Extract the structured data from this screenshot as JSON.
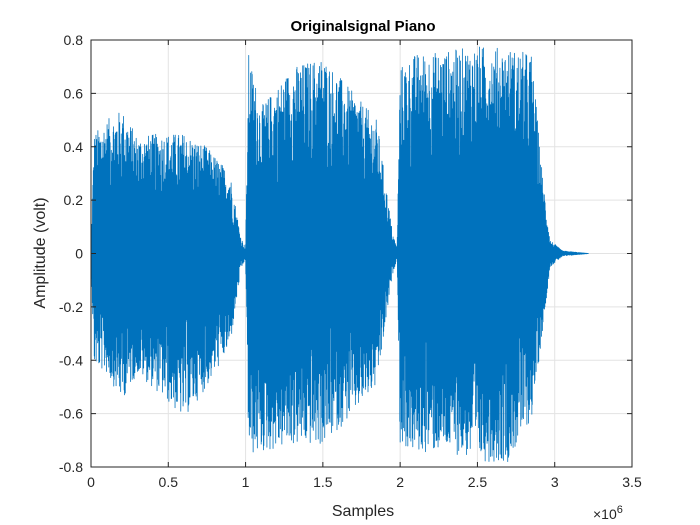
{
  "chart_data": {
    "type": "line",
    "title": "Originalsignal Piano",
    "xlabel": "Samples",
    "ylabel": "Amplitude (volt)",
    "x_exponent_base": "×10",
    "x_exponent_power": "6",
    "xlim": [
      0,
      3.5
    ],
    "ylim": [
      -0.8,
      0.8
    ],
    "x_scale_multiplier": 1000000,
    "x_ticks": [
      0,
      0.5,
      1,
      1.5,
      2,
      2.5,
      3,
      3.5
    ],
    "x_tick_labels": [
      "0",
      "0.5",
      "1",
      "1.5",
      "2",
      "2.5",
      "3",
      "3.5"
    ],
    "y_ticks": [
      -0.8,
      -0.6,
      -0.4,
      -0.2,
      0,
      0.2,
      0.4,
      0.6,
      0.8
    ],
    "y_tick_labels": [
      "-0.8",
      "-0.6",
      "-0.4",
      "-0.2",
      "0",
      "0.2",
      "0.4",
      "0.6",
      "0.8"
    ],
    "grid": true,
    "line_color": "#0072BD",
    "series": [
      {
        "envelope": [
          {
            "x": 0,
            "upper": 0.02,
            "lower": -0.02
          },
          {
            "x": 0.02,
            "upper": 0.45,
            "lower": -0.42
          },
          {
            "x": 0.1,
            "upper": 0.5,
            "lower": -0.45
          },
          {
            "x": 0.2,
            "upper": 0.54,
            "lower": -0.55
          },
          {
            "x": 0.3,
            "upper": 0.44,
            "lower": -0.45
          },
          {
            "x": 0.45,
            "upper": 0.45,
            "lower": -0.53
          },
          {
            "x": 0.6,
            "upper": 0.45,
            "lower": -0.62
          },
          {
            "x": 0.75,
            "upper": 0.4,
            "lower": -0.5
          },
          {
            "x": 0.9,
            "upper": 0.3,
            "lower": -0.35
          },
          {
            "x": 0.97,
            "upper": 0.06,
            "lower": -0.06
          },
          {
            "x": 1.0,
            "upper": 0.02,
            "lower": -0.02
          },
          {
            "x": 1.02,
            "upper": 0.75,
            "lower": -0.76
          },
          {
            "x": 1.1,
            "upper": 0.55,
            "lower": -0.75
          },
          {
            "x": 1.3,
            "upper": 0.7,
            "lower": -0.72
          },
          {
            "x": 1.5,
            "upper": 0.74,
            "lower": -0.72
          },
          {
            "x": 1.7,
            "upper": 0.6,
            "lower": -0.6
          },
          {
            "x": 1.85,
            "upper": 0.5,
            "lower": -0.5
          },
          {
            "x": 1.95,
            "upper": 0.08,
            "lower": -0.08
          },
          {
            "x": 1.98,
            "upper": 0.02,
            "lower": -0.02
          },
          {
            "x": 2.0,
            "upper": 0.7,
            "lower": -0.72
          },
          {
            "x": 2.1,
            "upper": 0.75,
            "lower": -0.75
          },
          {
            "x": 2.3,
            "upper": 0.76,
            "lower": -0.74
          },
          {
            "x": 2.5,
            "upper": 0.78,
            "lower": -0.78
          },
          {
            "x": 2.7,
            "upper": 0.77,
            "lower": -0.78
          },
          {
            "x": 2.85,
            "upper": 0.75,
            "lower": -0.62
          },
          {
            "x": 2.92,
            "upper": 0.3,
            "lower": -0.3
          },
          {
            "x": 2.97,
            "upper": 0.05,
            "lower": -0.05
          },
          {
            "x": 3.05,
            "upper": 0.01,
            "lower": -0.01
          },
          {
            "x": 3.22,
            "upper": 0.0,
            "lower": 0.0
          }
        ]
      }
    ]
  }
}
